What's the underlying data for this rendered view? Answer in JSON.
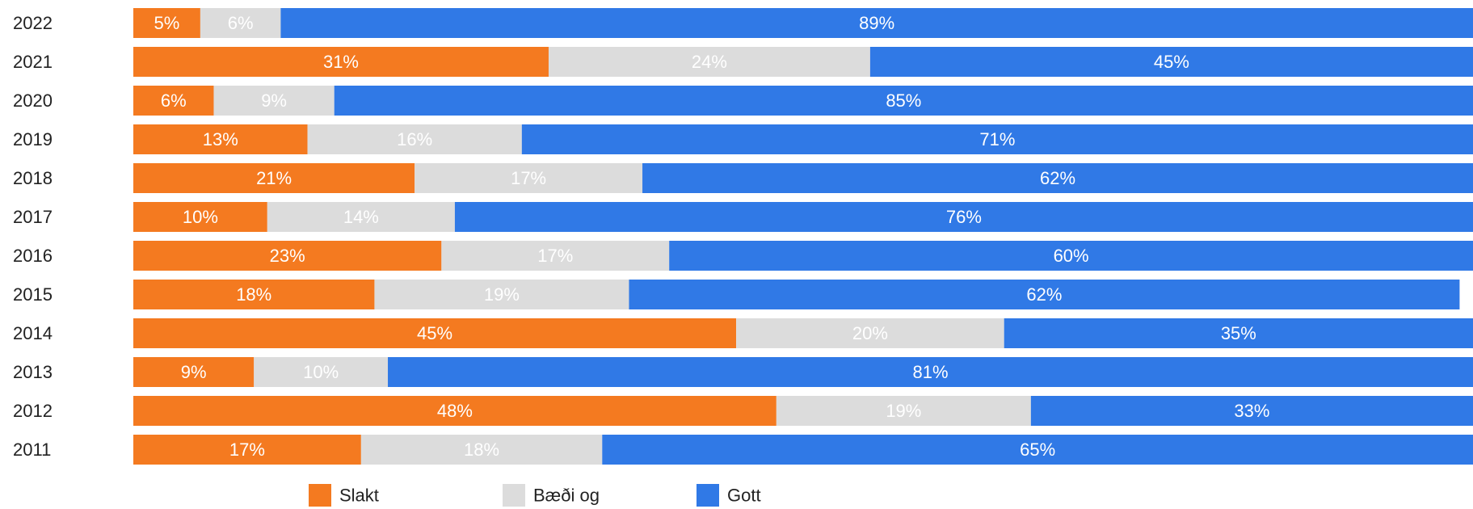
{
  "chart_data": {
    "type": "bar",
    "orientation": "horizontal",
    "stacked": true,
    "categories": [
      "2022",
      "2021",
      "2020",
      "2019",
      "2018",
      "2017",
      "2016",
      "2015",
      "2014",
      "2013",
      "2012",
      "2011"
    ],
    "series": [
      {
        "name": "Slakt",
        "color": "#f47a20",
        "values": [
          5,
          31,
          6,
          13,
          21,
          10,
          23,
          18,
          45,
          9,
          48,
          17
        ]
      },
      {
        "name": "Bæði og",
        "color": "#dcdcdc",
        "values": [
          6,
          24,
          9,
          16,
          17,
          14,
          17,
          19,
          20,
          10,
          19,
          18
        ]
      },
      {
        "name": "Gott",
        "color": "#3079e6",
        "values": [
          89,
          45,
          85,
          71,
          62,
          76,
          60,
          62,
          35,
          81,
          33,
          65
        ]
      }
    ],
    "value_suffix": "%",
    "xlim": [
      0,
      100
    ],
    "grid": false,
    "legend_position": "bottom"
  }
}
